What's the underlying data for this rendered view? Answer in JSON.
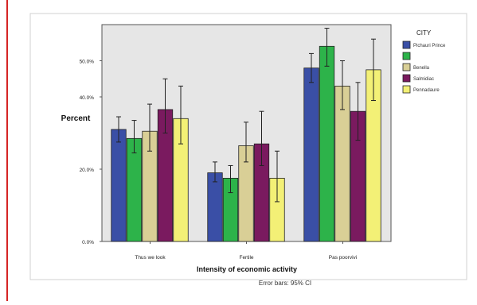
{
  "chart_data": {
    "type": "bar",
    "xlabel": "Intensity of economic activity",
    "ylabel": "Percent",
    "ylim": [
      0,
      60
    ],
    "yticks": [
      0,
      20,
      40,
      50
    ],
    "ytick_labels": [
      "0.0%",
      "20.0%",
      "40.0%",
      "50.0%"
    ],
    "categories": [
      "Thus we look",
      "Fertile",
      "Pas poorvivi"
    ],
    "legend_title": "CITY",
    "legend_position": "right",
    "footnote": "Error bars: 95% CI",
    "plot_background": "#e6e6e6",
    "series": [
      {
        "name": "Pichauri Prince",
        "color": "#3a4fa6",
        "values": [
          31,
          19,
          48
        ],
        "ci": [
          [
            27.5,
            34.5
          ],
          [
            16.5,
            22
          ],
          [
            44,
            52
          ]
        ]
      },
      {
        "name": "",
        "color": "#2db34a",
        "values": [
          28.5,
          17.5,
          54
        ],
        "ci": [
          [
            24.5,
            33.5
          ],
          [
            13.5,
            21
          ],
          [
            48.5,
            59
          ]
        ]
      },
      {
        "name": "Benella",
        "color": "#d9cf96",
        "values": [
          30.5,
          26.5,
          43
        ],
        "ci": [
          [
            25,
            38
          ],
          [
            22,
            33
          ],
          [
            36.5,
            50
          ]
        ]
      },
      {
        "name": "Salmidiac",
        "color": "#7a1a5f",
        "values": [
          36.5,
          27,
          36
        ],
        "ci": [
          [
            30,
            45
          ],
          [
            21,
            36
          ],
          [
            28,
            44
          ]
        ]
      },
      {
        "name": "Pennadaure",
        "color": "#f3f076",
        "values": [
          34,
          17.5,
          47.5
        ],
        "ci": [
          [
            27,
            43
          ],
          [
            11,
            25
          ],
          [
            39,
            56
          ]
        ]
      }
    ]
  }
}
